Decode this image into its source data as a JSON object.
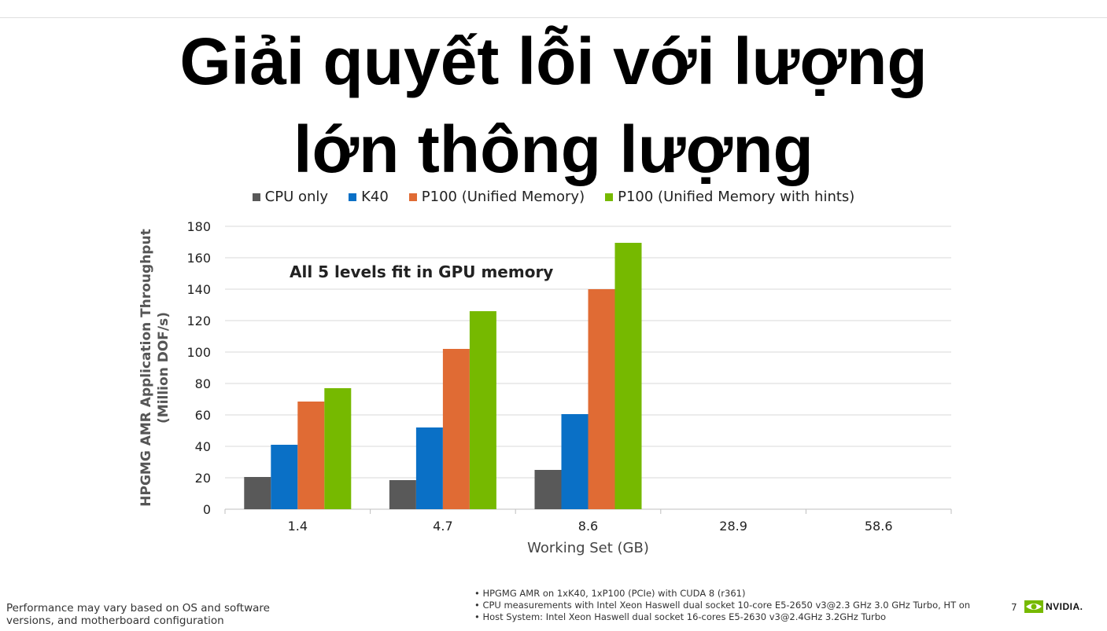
{
  "slide": {
    "title_line1": "Giải quyết lỗi với lượng",
    "title_line2": "lớn thông lượng",
    "page_number": "7",
    "logo_text": "NVIDIA.",
    "footer_left": "Performance may vary based on OS and software versions, and motherboard configuration",
    "footer_notes": [
      "• HPGMG AMR on 1xK40, 1xP100 (PCIe) with CUDA 8 (r361)",
      "• CPU measurements with Intel Xeon Haswell dual socket 10-core E5-2650 v3@2.3 GHz 3.0 GHz Turbo, HT on",
      "• Host System: Intel Xeon Haswell dual socket 16-cores E5-2630 v3@2.4GHz 3.2GHz Turbo"
    ]
  },
  "chart_data": {
    "type": "bar",
    "categories": [
      "1.4",
      "4.7",
      "8.6",
      "28.9",
      "58.6"
    ],
    "series": [
      {
        "name": "CPU only",
        "color": "#595959",
        "values": [
          20.5,
          18.5,
          25,
          null,
          null
        ]
      },
      {
        "name": "K40",
        "color": "#0a70c6",
        "values": [
          41,
          52,
          60.5,
          null,
          null
        ]
      },
      {
        "name": "P100 (Unified Memory)",
        "color": "#e06b34",
        "values": [
          68.5,
          102,
          140,
          null,
          null
        ]
      },
      {
        "name": "P100 (Unified Memory with hints)",
        "color": "#76b900",
        "values": [
          77,
          126,
          169.5,
          null,
          null
        ]
      }
    ],
    "xlabel": "Working Set (GB)",
    "ylabel_line1": "HPGMG AMR Application Throughput",
    "ylabel_line2": "(Million DOF/s)",
    "ylim": [
      0,
      180
    ],
    "yticks": [
      "0",
      "20",
      "40",
      "60",
      "80",
      "100",
      "120",
      "140",
      "160",
      "180"
    ],
    "grid": true,
    "legend_position": "top-center",
    "annotation": "All 5 levels fit in GPU memory"
  }
}
